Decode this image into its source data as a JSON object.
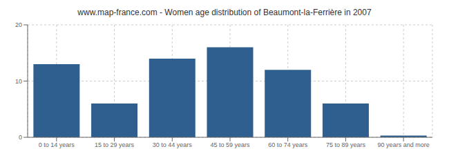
{
  "chart_data": {
    "type": "bar",
    "title": "www.map-france.com - Women age distribution of Beaumont-la-Ferrière in 2007",
    "categories": [
      "0 to 14 years",
      "15 to 29 years",
      "30 to 44 years",
      "45 to 59 years",
      "60 to 74 years",
      "75 to 89 years",
      "90 years and more"
    ],
    "values": [
      13,
      6,
      14,
      16,
      12,
      6,
      0.3
    ],
    "color": "#2e5f8e",
    "ylim": [
      0,
      20
    ],
    "yticks": [
      0,
      10,
      20
    ],
    "grid": true
  }
}
